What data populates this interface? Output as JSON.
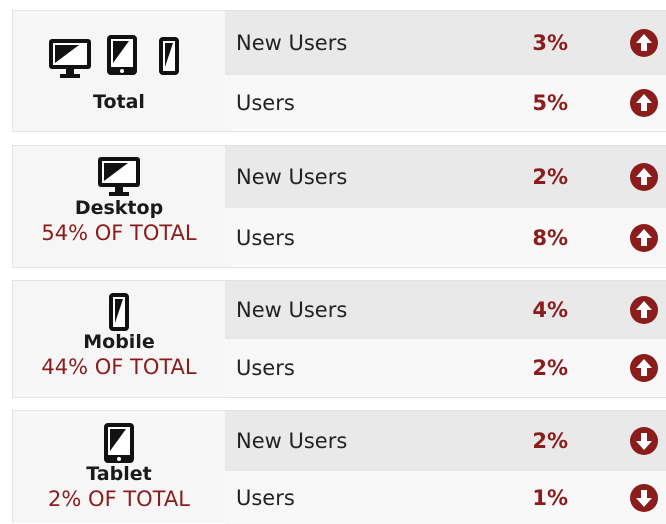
{
  "groups": [
    {
      "name": "Total",
      "rows": [
        {
          "label": "New Users",
          "change": "3%"
        },
        {
          "label": "Users",
          "change": "5%"
        }
      ]
    },
    {
      "name": "Desktop",
      "share": "54% OF TOTAL",
      "rows": [
        {
          "label": "New Users",
          "change": "2%"
        },
        {
          "label": "Users",
          "change": "8%"
        }
      ]
    },
    {
      "name": "Mobile",
      "share": "44% OF TOTAL",
      "rows": [
        {
          "label": "New Users",
          "change": "4%"
        },
        {
          "label": "Users",
          "change": "2%"
        }
      ]
    },
    {
      "name": "Tablet",
      "share": "2% OF TOTAL",
      "rows": [
        {
          "label": "New Users",
          "change": "2%"
        },
        {
          "label": "Users",
          "change": "1%"
        }
      ]
    }
  ]
}
